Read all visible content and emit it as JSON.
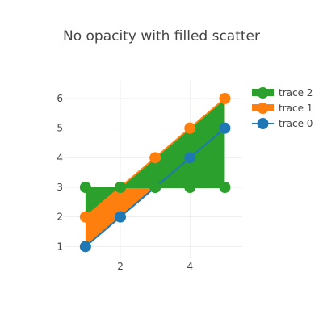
{
  "chart_data": {
    "type": "scatter",
    "title": "No opacity with filled scatter",
    "xlabel": "",
    "ylabel": "",
    "xlim": [
      0.4,
      5.5
    ],
    "ylim": [
      0.6,
      6.6
    ],
    "xticks": [
      2,
      4
    ],
    "yticks": [
      1,
      2,
      3,
      4,
      5,
      6
    ],
    "legend_position": "top-right",
    "series": [
      {
        "name": "trace 0",
        "color": "#1f77b4",
        "fill": "none",
        "x": [
          1,
          2,
          3,
          4,
          5
        ],
        "y": [
          1,
          2,
          3,
          4,
          5
        ]
      },
      {
        "name": "trace 1",
        "color": "#ff7f0e",
        "fill": "tonexty",
        "x": [
          1,
          2,
          3,
          4,
          5
        ],
        "y": [
          2,
          3,
          4,
          5,
          6
        ]
      },
      {
        "name": "trace 2",
        "color": "#2ca02c",
        "fill": "tonexty",
        "x": [
          1,
          2,
          3,
          4,
          5
        ],
        "y": [
          3,
          3,
          3,
          3,
          3
        ]
      }
    ],
    "legend_order": [
      "trace 2",
      "trace 1",
      "trace 0"
    ]
  }
}
